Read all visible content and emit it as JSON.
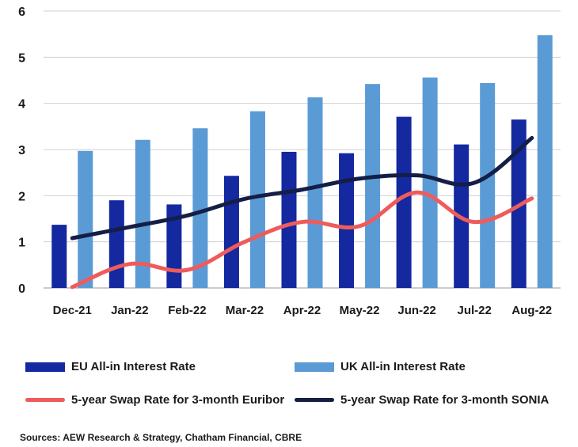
{
  "chart_data": {
    "type": "bar",
    "categories": [
      "Dec-21",
      "Jan-22",
      "Feb-22",
      "Mar-22",
      "Apr-22",
      "May-22",
      "Jun-22",
      "Jul-22",
      "Aug-22"
    ],
    "ylim": [
      0,
      6
    ],
    "yticks": [
      0,
      1,
      2,
      3,
      4,
      5,
      6
    ],
    "grid": true,
    "legend_position": "bottom",
    "series": [
      {
        "name": "EU All-in Interest Rate",
        "type": "bar",
        "color": "#1428a0",
        "values": [
          1.37,
          1.9,
          1.81,
          2.43,
          2.95,
          2.92,
          3.71,
          3.11,
          3.65
        ]
      },
      {
        "name": "UK All-in Interest Rate",
        "type": "bar",
        "color": "#5b9bd5",
        "values": [
          2.97,
          3.21,
          3.46,
          3.83,
          4.13,
          4.42,
          4.56,
          4.44,
          5.48
        ]
      },
      {
        "name": "5-year Swap Rate for 3-month Euribor",
        "type": "line",
        "color": "#ef5b5b",
        "values": [
          0.02,
          0.52,
          0.39,
          1.0,
          1.43,
          1.34,
          2.07,
          1.43,
          1.94
        ]
      },
      {
        "name": "5-year Swap Rate for 3-month SONIA",
        "type": "line",
        "color": "#141e46",
        "values": [
          1.08,
          1.32,
          1.57,
          1.93,
          2.13,
          2.37,
          2.44,
          2.28,
          3.25
        ]
      }
    ]
  },
  "source": "Sources: AEW Research & Strategy, Chatham Financial, CBRE"
}
